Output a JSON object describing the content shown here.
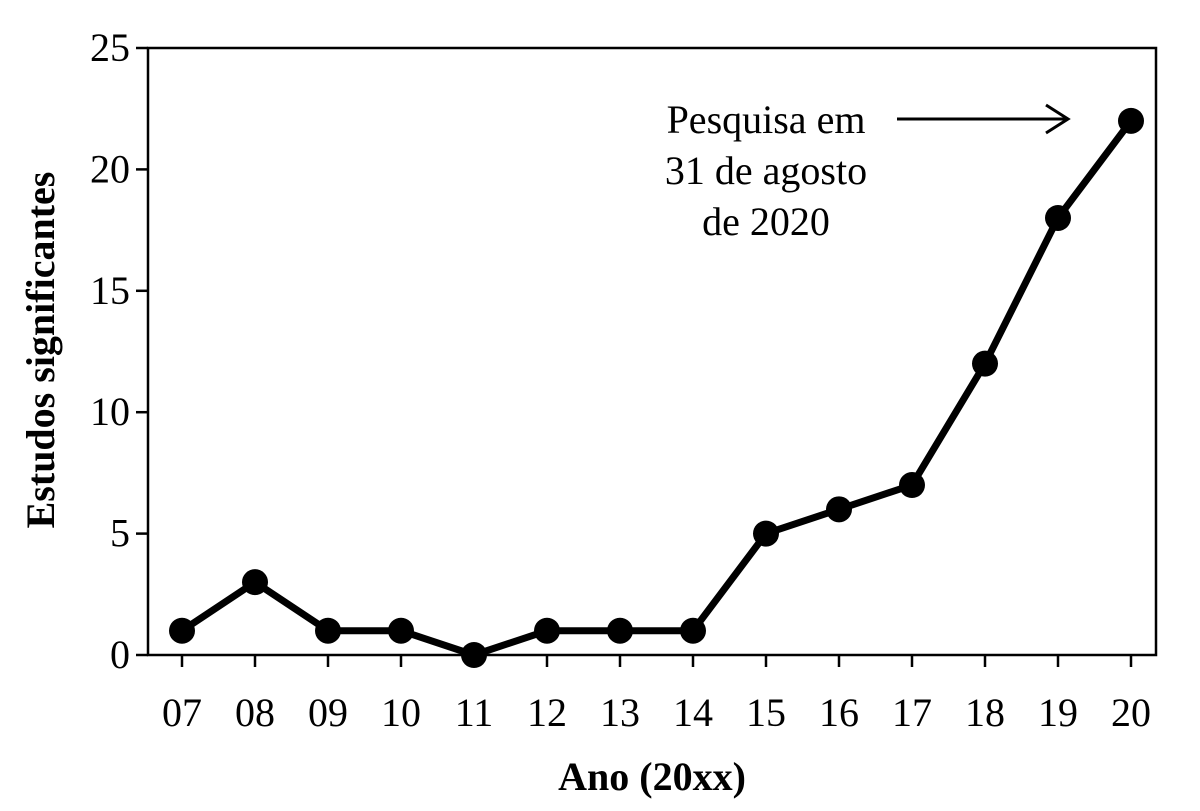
{
  "chart_data": {
    "type": "line",
    "title": "",
    "xlabel": "Ano (20xx)",
    "ylabel": "Estudos significantes",
    "categories": [
      "07",
      "08",
      "09",
      "10",
      "11",
      "12",
      "13",
      "14",
      "15",
      "16",
      "17",
      "18",
      "19",
      "20"
    ],
    "series": [
      {
        "values": [
          1,
          3,
          1,
          1,
          0,
          1,
          1,
          1,
          5,
          6,
          7,
          12,
          18,
          22
        ]
      }
    ],
    "ylim": [
      0,
      25
    ],
    "yticks": [
      "0",
      "5",
      "10",
      "15",
      "20",
      "25"
    ],
    "grid": false,
    "legend": "none",
    "annotation": {
      "lines": [
        "Pesquisa em",
        "31 de agosto",
        "de 2020"
      ],
      "points_to": "20"
    },
    "colors": {
      "line": "#000000",
      "marker": "#000000"
    }
  }
}
